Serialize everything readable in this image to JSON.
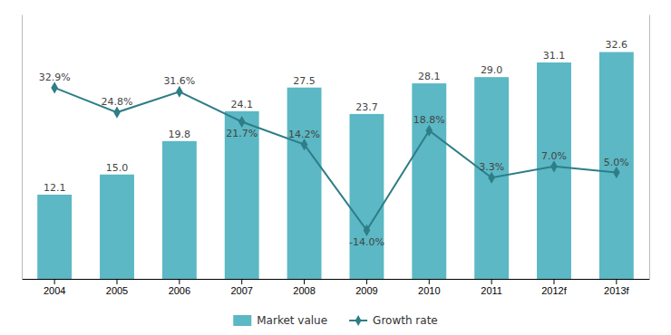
{
  "chart_data": {
    "type": "bar",
    "categories": [
      "2004",
      "2005",
      "2006",
      "2007",
      "2008",
      "2009",
      "2010",
      "2011",
      "2012f",
      "2013f"
    ],
    "series": [
      {
        "name": "Market value",
        "type": "bar",
        "color": "#5BB8C4",
        "values": [
          12.1,
          15.0,
          19.8,
          24.1,
          27.5,
          23.7,
          28.1,
          29.0,
          31.1,
          32.6
        ],
        "value_labels": [
          "12.1",
          "15.0",
          "19.8",
          "24.1",
          "27.5",
          "23.7",
          "28.1",
          "29.0",
          "31.1",
          "32.6"
        ]
      },
      {
        "name": "Growth rate",
        "type": "line",
        "axis": "y2",
        "color": "#2E7D87",
        "marker": "diamond",
        "line_style": "solid",
        "values": [
          32.9,
          24.8,
          31.6,
          21.7,
          14.2,
          -14.0,
          18.8,
          3.3,
          7.0,
          5.0
        ],
        "value_labels": [
          "32.9%",
          "24.8%",
          "31.6%",
          "21.7%",
          "14.2%",
          "-14.0%",
          "18.8%",
          "3.3%",
          "7.0%",
          "5.0%"
        ]
      }
    ],
    "ylim": [
      0,
      38
    ],
    "y2lim": [
      -30,
      57
    ],
    "data_labels": true,
    "tick_labels": "x",
    "grid": false,
    "legend": "bottom"
  }
}
